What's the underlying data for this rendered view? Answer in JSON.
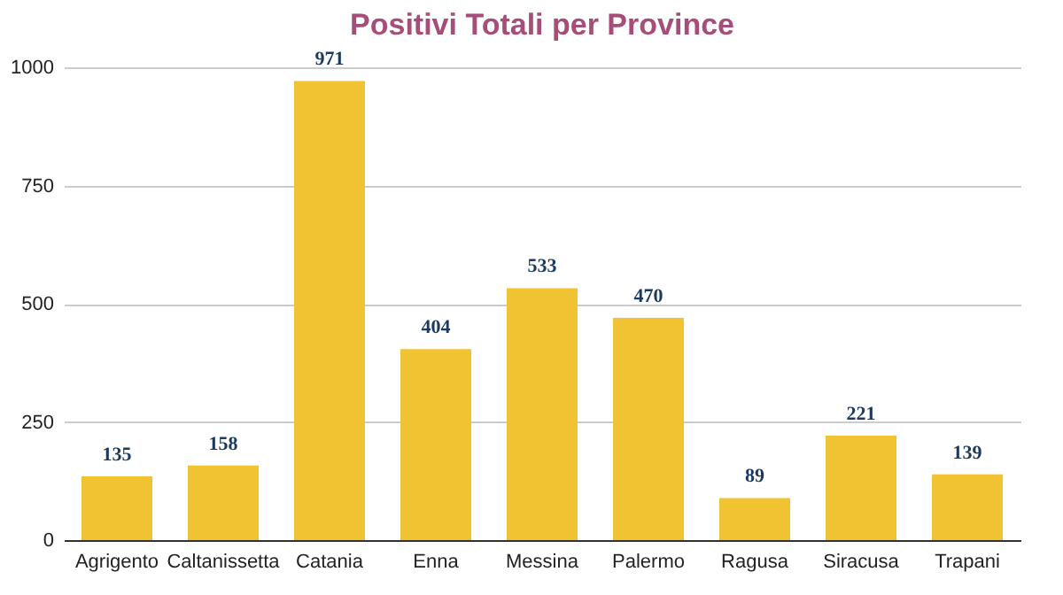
{
  "chart_data": {
    "type": "bar",
    "title": "Positivi Totali per Province",
    "categories": [
      "Agrigento",
      "Caltanissetta",
      "Catania",
      "Enna",
      "Messina",
      "Palermo",
      "Ragusa",
      "Siracusa",
      "Trapani"
    ],
    "values": [
      135,
      158,
      971,
      404,
      533,
      470,
      89,
      221,
      139
    ],
    "color": "#f1c232",
    "ylim": [
      0,
      1000
    ],
    "yticks": [
      0,
      250,
      500,
      750,
      1000
    ],
    "grid": "y",
    "data_labels": true
  }
}
